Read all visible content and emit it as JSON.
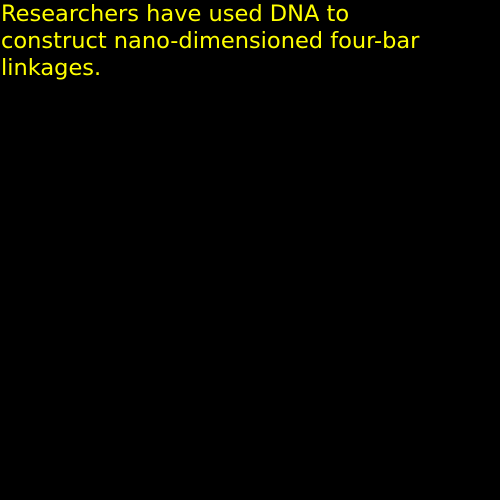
{
  "colors": {
    "background": "#000000",
    "text": "#ffff00"
  },
  "caption": {
    "text": "Researchers have used DNA to\nconstruct nano-dimensioned four-bar\nlinkages."
  }
}
